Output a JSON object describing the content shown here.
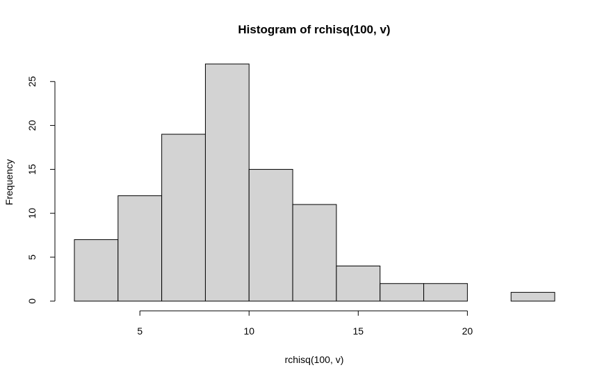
{
  "chart_data": {
    "type": "bar",
    "title": "Histogram of rchisq(100, v)",
    "xlabel": "rchisq(100, v)",
    "ylabel": "Frequency",
    "bins": [
      {
        "start": 2,
        "end": 4,
        "count": 7
      },
      {
        "start": 4,
        "end": 6,
        "count": 12
      },
      {
        "start": 6,
        "end": 8,
        "count": 19
      },
      {
        "start": 8,
        "end": 10,
        "count": 27
      },
      {
        "start": 10,
        "end": 12,
        "count": 15
      },
      {
        "start": 12,
        "end": 14,
        "count": 11
      },
      {
        "start": 14,
        "end": 16,
        "count": 4
      },
      {
        "start": 16,
        "end": 18,
        "count": 2
      },
      {
        "start": 18,
        "end": 20,
        "count": 2
      },
      {
        "start": 20,
        "end": 22,
        "count": 0
      },
      {
        "start": 22,
        "end": 24,
        "count": 1
      }
    ],
    "x_ticks": [
      5,
      10,
      15,
      20
    ],
    "y_ticks": [
      0,
      5,
      10,
      15,
      20,
      25
    ],
    "xlim": [
      2,
      24
    ],
    "ylim": [
      0,
      27
    ],
    "grid": false,
    "bar_fill": "#d3d3d3",
    "bar_stroke": "#000000"
  }
}
